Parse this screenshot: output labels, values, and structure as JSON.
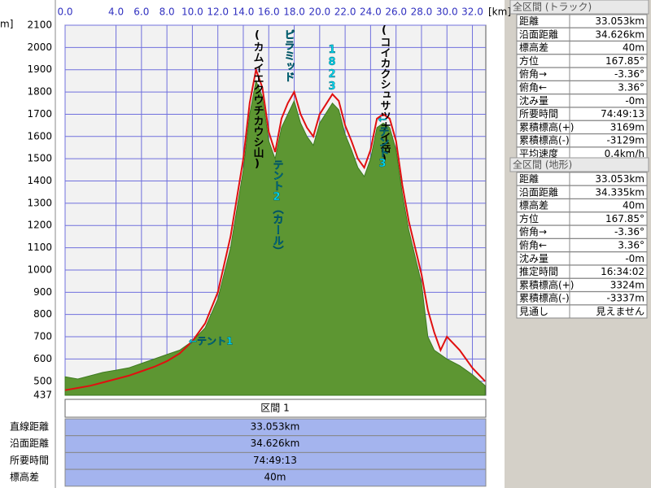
{
  "chart_data": {
    "type": "area",
    "x_unit_label": "[km]",
    "y_unit_label": "m]",
    "xlim": [
      0,
      33.053
    ],
    "ylim": [
      437,
      2100
    ],
    "xticks": [
      {
        "value": 0,
        "label": "0.0"
      },
      {
        "value": 4,
        "label": "4.0"
      },
      {
        "value": 6,
        "label": "6.0"
      },
      {
        "value": 8,
        "label": "8.0"
      },
      {
        "value": 10,
        "label": "10.0"
      },
      {
        "value": 12,
        "label": "12.0"
      },
      {
        "value": 14,
        "label": "14.0"
      },
      {
        "value": 16,
        "label": "16.0"
      },
      {
        "value": 18,
        "label": "18.0"
      },
      {
        "value": 20,
        "label": "20.0"
      },
      {
        "value": 22,
        "label": "22.0"
      },
      {
        "value": 24,
        "label": "24.0"
      },
      {
        "value": 26,
        "label": "26.0"
      },
      {
        "value": 28,
        "label": "28.0"
      },
      {
        "value": 30,
        "label": "30.0"
      },
      {
        "value": 32,
        "label": "32.0"
      }
    ],
    "yticks": [
      437,
      500,
      600,
      700,
      800,
      900,
      1000,
      1100,
      1200,
      1300,
      1400,
      1500,
      1600,
      1700,
      1800,
      1900,
      2000,
      2100
    ],
    "grid": true,
    "x": [
      0,
      1,
      2,
      3,
      4,
      5,
      6,
      7,
      8,
      9,
      10,
      11,
      12,
      13,
      14,
      14.5,
      15,
      15.5,
      16,
      16.5,
      17,
      17.5,
      18,
      18.5,
      19,
      19.5,
      20,
      21,
      21.5,
      22,
      22.5,
      23,
      23.5,
      24,
      24.5,
      25,
      25.5,
      26,
      26.5,
      27,
      28,
      28.5,
      29,
      29.5,
      30,
      31,
      32,
      33
    ],
    "series": [
      {
        "color": "#5d9632",
        "values": [
          520,
          510,
          525,
          540,
          550,
          560,
          580,
          600,
          620,
          640,
          680,
          740,
          870,
          1100,
          1450,
          1700,
          1850,
          1780,
          1580,
          1500,
          1640,
          1700,
          1760,
          1660,
          1600,
          1560,
          1660,
          1750,
          1720,
          1610,
          1540,
          1460,
          1420,
          1500,
          1640,
          1660,
          1640,
          1540,
          1340,
          1180,
          940,
          700,
          640,
          620,
          600,
          570,
          530,
          480
        ]
      },
      {
        "color": "#e01010",
        "values": [
          460,
          470,
          480,
          495,
          510,
          525,
          545,
          565,
          590,
          625,
          680,
          760,
          900,
          1150,
          1500,
          1750,
          1900,
          1820,
          1620,
          1530,
          1680,
          1750,
          1800,
          1700,
          1640,
          1600,
          1700,
          1790,
          1760,
          1650,
          1580,
          1500,
          1460,
          1540,
          1680,
          1700,
          1680,
          1580,
          1380,
          1220,
          980,
          820,
          720,
          640,
          700,
          640,
          560,
          500
        ]
      }
    ],
    "annotations": [
      {
        "text": "(カムイエクウチカウシ山)"
      },
      {
        "text": "ピラミッド"
      },
      {
        "text": "1823"
      },
      {
        "text": "(コイカクシュサツナイ岳)"
      },
      {
        "text": "テント2（カール）"
      },
      {
        "text": "←テント3"
      },
      {
        "text": "←テント1"
      }
    ]
  },
  "track_panel": {
    "title": "全区間 (トラック)",
    "rows": [
      [
        "距離",
        "33.053km"
      ],
      [
        "沿面距離",
        "34.626km"
      ],
      [
        "標高差",
        "40m"
      ],
      [
        "方位",
        "167.85°"
      ],
      [
        "俯角→",
        "-3.36°"
      ],
      [
        "俯角←",
        "3.36°"
      ],
      [
        "沈み量",
        "-0m"
      ],
      [
        "所要時間",
        "74:49:13"
      ],
      [
        "累積標高(+)",
        "3169m"
      ],
      [
        "累積標高(-)",
        "-3129m"
      ],
      [
        "平均速度",
        "0.4km/h"
      ]
    ]
  },
  "terrain_panel": {
    "title": "全区間 (地形)",
    "rows": [
      [
        "距離",
        "33.053km"
      ],
      [
        "沿面距離",
        "34.335km"
      ],
      [
        "標高差",
        "40m"
      ],
      [
        "方位",
        "167.85°"
      ],
      [
        "俯角→",
        "-3.36°"
      ],
      [
        "俯角←",
        "3.36°"
      ],
      [
        "沈み量",
        "-0m"
      ],
      [
        "推定時間",
        "16:34:02"
      ],
      [
        "累積標高(+)",
        "3324m"
      ],
      [
        "累積標高(-)",
        "-3337m"
      ],
      [
        "見通し",
        "見えません"
      ]
    ]
  },
  "section_table": {
    "header": "区間 1",
    "rows": [
      [
        "直線距離",
        "33.053km"
      ],
      [
        "沿面距離",
        "34.626km"
      ],
      [
        "所要時間",
        "74:49:13"
      ],
      [
        "標高差",
        "40m"
      ]
    ]
  }
}
